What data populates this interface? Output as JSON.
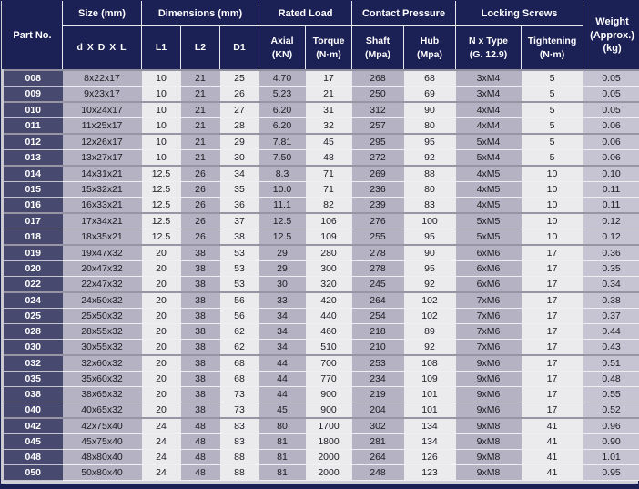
{
  "colors": {
    "header_navy": "#1b2055",
    "part_cell_navy": "#474a6e",
    "stripe_gray": "#b5b2c3",
    "stripe_light": "#ebebee",
    "weight_col": "#c6c3d2"
  },
  "table": {
    "header": {
      "part_no": "Part No.",
      "size_group": "Size (mm)",
      "dimensions_group": "Dimensions (mm)",
      "rated_load_group": "Rated Load",
      "contact_pressure_group": "Contact Pressure",
      "locking_screws_group": "Locking Screws",
      "weight": "Weight\n(Approx.)\n(kg)",
      "sub": [
        "d X D X L",
        "L1",
        "L2",
        "D1",
        "Axial\n(KN)",
        "Torque\n(N·m)",
        "Shaft\n(Mpa)",
        "Hub\n(Mpa)",
        "N x Type\n(G. 12.9)",
        "Tightening\n(N·m)"
      ]
    },
    "column_keys": [
      "part-no",
      "size",
      "l1",
      "l2",
      "d1",
      "axial-kn",
      "torque-nm",
      "shaft-mpa",
      "hub-mpa",
      "screw-type",
      "tightening-nm",
      "weight-kg"
    ],
    "rows": [
      [
        "008",
        "8x22x17",
        "10",
        "21",
        "25",
        "4.70",
        "17",
        "268",
        "68",
        "3xM4",
        "5",
        "0.05"
      ],
      [
        "009",
        "9x23x17",
        "10",
        "21",
        "26",
        "5.23",
        "21",
        "250",
        "69",
        "3xM4",
        "5",
        "0.05"
      ],
      [
        "010",
        "10x24x17",
        "10",
        "21",
        "27",
        "6.20",
        "31",
        "312",
        "90",
        "4xM4",
        "5",
        "0.05"
      ],
      [
        "011",
        "11x25x17",
        "10",
        "21",
        "28",
        "6.20",
        "32",
        "257",
        "80",
        "4xM4",
        "5",
        "0.06"
      ],
      [
        "012",
        "12x26x17",
        "10",
        "21",
        "29",
        "7.81",
        "45",
        "295",
        "95",
        "5xM4",
        "5",
        "0.06"
      ],
      [
        "013",
        "13x27x17",
        "10",
        "21",
        "30",
        "7.50",
        "48",
        "272",
        "92",
        "5xM4",
        "5",
        "0.06"
      ],
      [
        "014",
        "14x31x21",
        "12.5",
        "26",
        "34",
        "8.3",
        "71",
        "269",
        "88",
        "4xM5",
        "10",
        "0.10"
      ],
      [
        "015",
        "15x32x21",
        "12.5",
        "26",
        "35",
        "10.0",
        "71",
        "236",
        "80",
        "4xM5",
        "10",
        "0.11"
      ],
      [
        "016",
        "16x33x21",
        "12.5",
        "26",
        "36",
        "11.1",
        "82",
        "239",
        "83",
        "4xM5",
        "10",
        "0.11"
      ],
      [
        "017",
        "17x34x21",
        "12.5",
        "26",
        "37",
        "12.5",
        "106",
        "276",
        "100",
        "5xM5",
        "10",
        "0.12"
      ],
      [
        "018",
        "18x35x21",
        "12.5",
        "26",
        "38",
        "12.5",
        "109",
        "255",
        "95",
        "5xM5",
        "10",
        "0.12"
      ],
      [
        "019",
        "19x47x32",
        "20",
        "38",
        "53",
        "29",
        "280",
        "278",
        "90",
        "6xM6",
        "17",
        "0.36"
      ],
      [
        "020",
        "20x47x32",
        "20",
        "38",
        "53",
        "29",
        "300",
        "278",
        "95",
        "6xM6",
        "17",
        "0.35"
      ],
      [
        "022",
        "22x47x32",
        "20",
        "38",
        "53",
        "30",
        "320",
        "245",
        "92",
        "6xM6",
        "17",
        "0.34"
      ],
      [
        "024",
        "24x50x32",
        "20",
        "38",
        "56",
        "33",
        "420",
        "264",
        "102",
        "7xM6",
        "17",
        "0.38"
      ],
      [
        "025",
        "25x50x32",
        "20",
        "38",
        "56",
        "34",
        "440",
        "254",
        "102",
        "7xM6",
        "17",
        "0.37"
      ],
      [
        "028",
        "28x55x32",
        "20",
        "38",
        "62",
        "34",
        "460",
        "218",
        "89",
        "7xM6",
        "17",
        "0.44"
      ],
      [
        "030",
        "30x55x32",
        "20",
        "38",
        "62",
        "34",
        "510",
        "210",
        "92",
        "7xM6",
        "17",
        "0.43"
      ],
      [
        "032",
        "32x60x32",
        "20",
        "38",
        "68",
        "44",
        "700",
        "253",
        "108",
        "9xM6",
        "17",
        "0.51"
      ],
      [
        "035",
        "35x60x32",
        "20",
        "38",
        "68",
        "44",
        "770",
        "234",
        "109",
        "9xM6",
        "17",
        "0.48"
      ],
      [
        "038",
        "38x65x32",
        "20",
        "38",
        "73",
        "44",
        "900",
        "219",
        "101",
        "9xM6",
        "17",
        "0.55"
      ],
      [
        "040",
        "40x65x32",
        "20",
        "38",
        "73",
        "45",
        "900",
        "204",
        "101",
        "9xM6",
        "17",
        "0.52"
      ],
      [
        "042",
        "42x75x40",
        "24",
        "48",
        "83",
        "80",
        "1700",
        "302",
        "134",
        "9xM8",
        "41",
        "0.96"
      ],
      [
        "045",
        "45x75x40",
        "24",
        "48",
        "83",
        "81",
        "1800",
        "281",
        "134",
        "9xM8",
        "41",
        "0.90"
      ],
      [
        "048",
        "48x80x40",
        "24",
        "48",
        "88",
        "81",
        "2000",
        "264",
        "126",
        "9xM8",
        "41",
        "1.01"
      ],
      [
        "050",
        "50x80x40",
        "24",
        "48",
        "88",
        "81",
        "2000",
        "248",
        "123",
        "9xM8",
        "41",
        "0.95"
      ]
    ],
    "group_end_parts": [
      "009",
      "011",
      "013",
      "016",
      "018",
      "022",
      "030",
      "040"
    ]
  }
}
